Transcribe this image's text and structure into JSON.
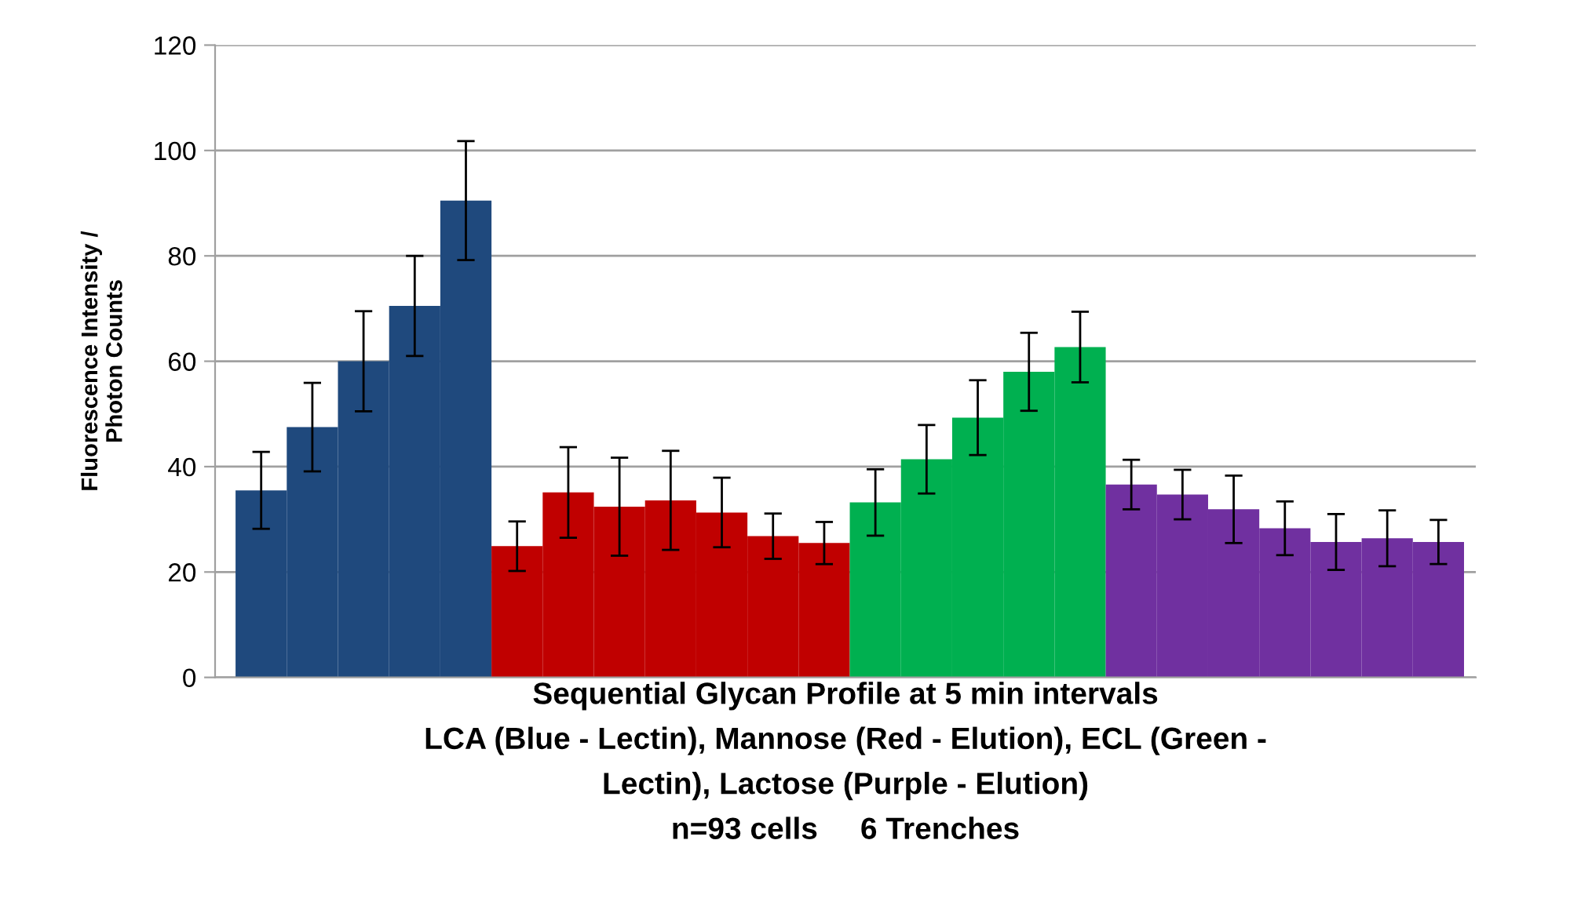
{
  "chart_data": {
    "type": "bar",
    "xlabel": "Sequential Glycan Profile at 5 min intervals\nLCA (Blue - Lectin), Mannose (Red - Elution), ECL (Green -\nLectin), Lactose (Purple - Elution)\nn=93 cells     6 Trenches",
    "ylabel": "Fluorescence Intensity /\nPhoton Counts",
    "categories": [
      null,
      null,
      null,
      null,
      null,
      null,
      null,
      null,
      null,
      null,
      null,
      null,
      null,
      null,
      null,
      null,
      null,
      null,
      null,
      null,
      null,
      null,
      null,
      null
    ],
    "values": [
      35.5,
      47.5,
      60,
      70.5,
      90.5,
      24.9,
      35.1,
      32.4,
      33.6,
      31.3,
      26.8,
      25.5,
      33.2,
      41.4,
      49.3,
      58,
      62.7,
      36.6,
      34.7,
      31.9,
      28.3,
      25.7,
      26.4,
      25.7
    ],
    "errors": [
      7.3,
      8.4,
      9.5,
      9.5,
      11.3,
      4.7,
      8.6,
      9.3,
      9.4,
      6.6,
      4.3,
      4,
      6.3,
      6.5,
      7.1,
      7.4,
      6.7,
      4.7,
      4.7,
      6.4,
      5.1,
      5.3,
      5.3,
      4.2
    ],
    "colors": [
      "#1f497d",
      "#1f497d",
      "#1f497d",
      "#1f497d",
      "#1f497d",
      "#c00000",
      "#c00000",
      "#c00000",
      "#c00000",
      "#c00000",
      "#c00000",
      "#c00000",
      "#00b050",
      "#00b050",
      "#00b050",
      "#00b050",
      "#00b050",
      "#7030a0",
      "#7030a0",
      "#7030a0",
      "#7030a0",
      "#7030a0",
      "#7030a0",
      "#7030a0"
    ],
    "ylim": [
      0,
      120
    ],
    "yticks": [
      0,
      20,
      40,
      60,
      80,
      100,
      120
    ],
    "grid": "y",
    "tick_labels": "y"
  }
}
